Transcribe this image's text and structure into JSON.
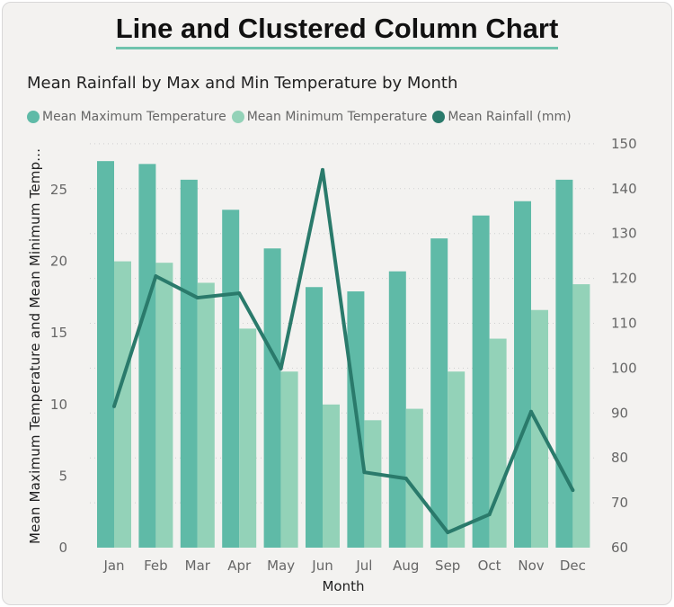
{
  "header": {
    "title": "Line and Clustered Column Chart"
  },
  "chart_data": {
    "type": "bar+line",
    "title": "Mean Rainfall by Max and Min Temperature by Month",
    "categories": [
      "Jan",
      "Feb",
      "Mar",
      "Apr",
      "May",
      "Jun",
      "Jul",
      "Aug",
      "Sep",
      "Oct",
      "Nov",
      "Dec"
    ],
    "series": [
      {
        "name": "Mean Maximum Temperature",
        "type": "bar",
        "axis": "left",
        "color": "#5fbaa7",
        "values": [
          27.0,
          26.8,
          25.7,
          23.6,
          20.9,
          18.2,
          17.9,
          19.3,
          21.6,
          23.2,
          24.2,
          25.7
        ]
      },
      {
        "name": "Mean Minimum Temperature",
        "type": "bar",
        "axis": "left",
        "color": "#93d2b8",
        "values": [
          20.0,
          19.9,
          18.5,
          15.3,
          12.3,
          10.0,
          8.9,
          9.7,
          12.3,
          14.6,
          16.6,
          18.4
        ]
      },
      {
        "name": "Mean Rainfall (mm)",
        "type": "line",
        "axis": "right",
        "color": "#2a7a6b",
        "values": [
          91.5,
          120.5,
          115.7,
          116.7,
          99.9,
          144.2,
          76.8,
          75.4,
          63.4,
          67.4,
          90.3,
          72.8
        ]
      }
    ],
    "xlabel": "Month",
    "ylabel": "Mean Maximum Temperature and Mean Minimum Temp...",
    "ylim": [
      0,
      27.5
    ],
    "yticks": [
      0,
      5,
      10,
      15,
      20,
      25
    ],
    "y2lim": [
      60,
      150
    ],
    "y2ticks": [
      60,
      70,
      80,
      90,
      100,
      110,
      120,
      130,
      140,
      150
    ],
    "grid": true,
    "legend": "top-left"
  }
}
